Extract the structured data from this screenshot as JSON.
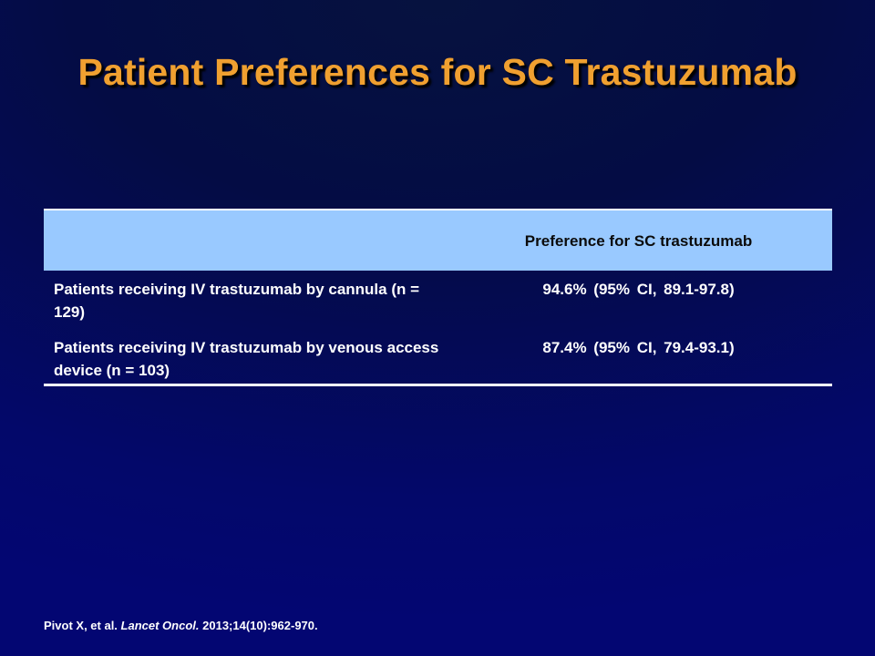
{
  "slide": {
    "title": "Patient Preferences for SC Trastuzumab"
  },
  "table": {
    "header": {
      "label_col": "",
      "value_col": "Preference for SC trastuzumab"
    },
    "rows": [
      {
        "label": "Patients receiving IV trastuzumab by cannula (n = 129)",
        "value": "94.6% (95% CI, 89.1-97.8)"
      },
      {
        "label": "Patients receiving IV trastuzumab by venous access device (n = 103)",
        "value": "87.4% (95% CI, 79.4-93.1)"
      }
    ]
  },
  "citation": {
    "authors": "Pivot X, et al.",
    "journal": "Lancet Oncol.",
    "details": "2013;14(10):962-970."
  },
  "colors": {
    "title": "#f0a030",
    "header_bg": "#99c9ff",
    "background": "#040c44"
  }
}
